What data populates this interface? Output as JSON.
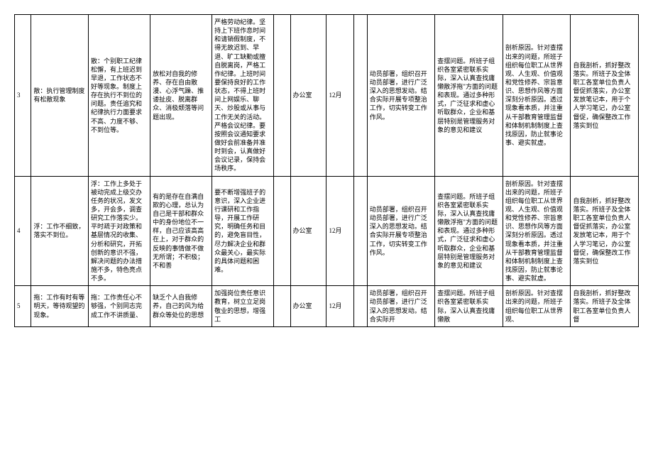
{
  "rows": [
    {
      "idx": "3",
      "title": "散：执行管理制度有松散现象",
      "c2": "散：个别职工纪律松懈，有上班迟到早退，工作状态不好等现象。制度上存在执行不到位的问题。责任追究和纪律执行力面要求不高、力度不够、不到位等。",
      "c3": "放松对自我的修养、存在自由散漫、心浮气躁、推诿扯皮、脱离群众、消极颓落等问题出现。",
      "c4": "严格劳动纪律。坚持上下班作息时间和请销假制度，不得无故迟到、早退、旷工缺勤或擅自脱离岗，严格工作纪律。上班时间要保持良好的工作状态，不得上班时间上网娱乐、聊天、炒股或从事与工作无关的活动。严格会议纪律。要按照会议通知要求做好会前准备并准时到会，认真做好会议记录，保持会场秩序。",
      "dept": "办公室",
      "month": "12月",
      "c8": "动员部署，组织召开动员部署，进行广泛深入的思想发动。结合实际开展专项整治工作，切实转变工作作风。",
      "c9": "查摆问题。所班子组织各室紧密联系实际，深入认真查找庸懒散浮拖\"方面的问题和表现。通过多种形式，广泛征求和虚心听取群众，企业和基层特别是管理服务对象的意见和建议",
      "c10": "剖析原因。针对查摆出来的问题，所班子组织每位职工从世界观、人生观、价值观和党性修养、宗旨意识、思想作风等方面深刻分析原因。透过现象看本质，并注重从干部教育管理监督和体制机制制度上查找原因，防止就事论事、避实就虚。",
      "c11": "自我剖析，抓好整改落实。所班子及全体职工各室单位负责人督促抓落实，办公室发放笔记本，用于个人学习笔记，办公室督促，确保整改工作落实到位"
    },
    {
      "idx": "4",
      "title": "浮：工作不细致，落实不到位。",
      "c2": "浮：工作上多处于被动完成上级交办任务的状况，发文多，开会多，调查研究工作落实少。平时疏于对政策和基层情况的收集、分析和研究，开拓创新的意识不强，解决问题的办法措施不多，特色亮点不多。",
      "c3": "有的是存在自满自欺的心理，总认为自己是干部和群众中的身份地位不一样，自己应该高高在上，对于群众的反映的事情做不做无所谓；不积极；不和善",
      "c4": "要不断增强班子的意识，深入企业进行课研和工作指导，开展工作研究，明确任务和目的，避免盲目性，尽力解决企业和群众最关心，最实际的具体问题和困难。",
      "dept": "办公室",
      "month": "12月",
      "c8": "动员部署，组织召开动员部署，进行广泛深入的思想发动。结合实际开展专项整治工作，切实转变工作作风。",
      "c9": "查摆问题。所班子组织各室紧密联系实际，深入认真查找庸懒散浮拖\"方面的问题和表现。通过多种形式，广泛征求和虚心听取群众，企业和基层特别是管理服务对象的意见和建议",
      "c10": "剖析原因。针对查摆出来的问题，所班子组织每位职工从世界观、人生观、价值观和党性修养、宗旨意识、思想作风等方面深刻分析原因。透过现象看本质，并注重从干部教育管理监督和体制机制制度上查找原因，防止就事论事、避实就虚。",
      "c11": "自我剖析，抓好整改落实。所班子及全体职工各室单位负责人督促抓落实，办公室发放笔记本，用于个人学习笔记，办公室督促，确保整改工作落实到位"
    },
    {
      "idx": "5",
      "title": "拖：工作有时有等明天，等待观望的现象。",
      "c2": "拖：工作责任心不够强，个别同志完成工作不讲质量、",
      "c3": "缺乏个人自我修养，自己的风为给群众等处位的思想",
      "c4": "加强岗位责任意识教育，树立立足岗敬业的思想，增强工",
      "dept": "办公室",
      "month": "12月",
      "c8": "动员部署，组织召开动员部署，进行广泛深入的思想发动。结合实际开",
      "c9": "查摆问题。所班子组织各室紧密联系实际，深入认真查找庸懒散",
      "c10": "剖析原因。针对查摆出来的问题，所班子组织每位职工从世界观、",
      "c11": "自我剖析，抓好整改落实。所班子及全体职工各室单位负责人督"
    }
  ]
}
